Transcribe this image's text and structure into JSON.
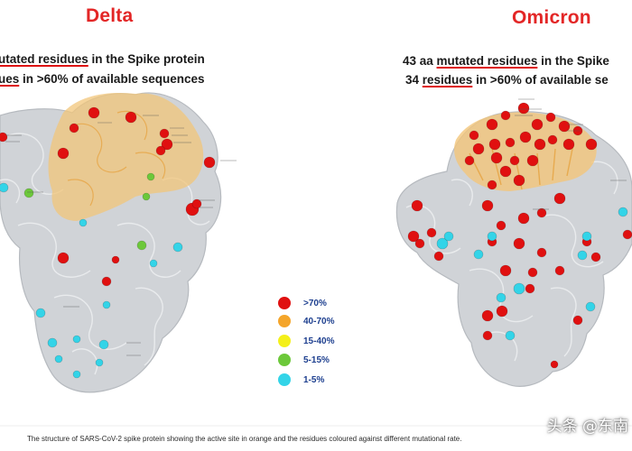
{
  "panels": {
    "delta": {
      "title": "Delta",
      "subtitle_1_pre": "",
      "subtitle_1_mut": "utated residues",
      "subtitle_1_post": " in the Spike protein",
      "subtitle_2_mut": "ues",
      "subtitle_2_post": " in >60% of available sequences"
    },
    "omicron": {
      "title": "Omicron",
      "subtitle_1_pre": "43 aa ",
      "subtitle_1_mut": "mutated residues",
      "subtitle_1_post": " in the Spike",
      "subtitle_2_pre": "34 ",
      "subtitle_2_mut": "residues",
      "subtitle_2_post": " in >60% of available se"
    }
  },
  "legend": [
    {
      "label": ">70%",
      "color": "#e01010"
    },
    {
      "label": "40-70%",
      "color": "#f4a52a"
    },
    {
      "label": "15-40%",
      "color": "#f4f01a"
    },
    {
      "label": "5-15%",
      "color": "#6cc83a"
    },
    {
      "label": "1-5%",
      "color": "#33d4e8"
    }
  ],
  "caption": "The structure of SARS-CoV-2 spike protein showing the active site in orange and the residues coloured against different mutational rate.",
  "watermark": "头条 @东南",
  "colors": {
    "title_red": "#e32626",
    "protein_gray": "#c9cdd1",
    "active_site_orange": "#f2c67a"
  }
}
